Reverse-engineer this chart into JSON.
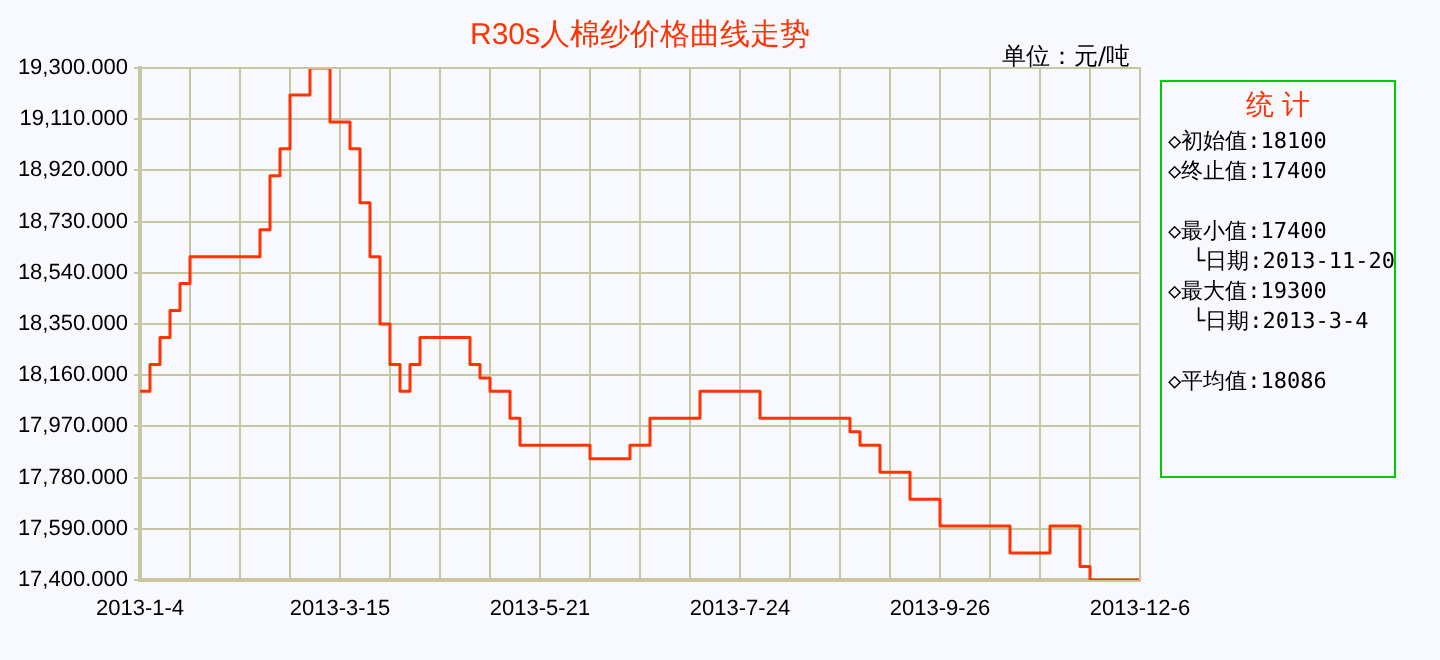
{
  "chart_data": {
    "type": "step",
    "title": "R30s人棉纱价格曲线走势",
    "subtitle": "单位：元/吨",
    "categories": [
      "2013-1-4",
      null,
      null,
      null,
      null,
      null,
      null,
      null,
      null,
      null,
      null,
      null,
      null,
      null,
      null,
      null,
      null,
      null,
      null,
      null,
      "2013-3-15",
      null,
      null,
      null,
      null,
      null,
      null,
      null,
      null,
      null,
      null,
      null,
      null,
      null,
      null,
      null,
      null,
      null,
      null,
      null,
      "2013-5-21",
      null,
      null,
      null,
      null,
      null,
      null,
      null,
      null,
      null,
      null,
      null,
      null,
      null,
      null,
      null,
      null,
      null,
      null,
      null,
      "2013-7-24",
      null,
      null,
      null,
      null,
      null,
      null,
      null,
      null,
      null,
      null,
      null,
      null,
      null,
      null,
      null,
      null,
      null,
      null,
      null,
      "2013-9-26",
      null,
      null,
      null,
      null,
      null,
      null,
      null,
      null,
      null,
      null,
      null,
      null,
      null,
      null,
      null,
      null,
      null,
      null,
      null,
      "2013-12-6"
    ],
    "series": [
      {
        "color": "#ff3300",
        "values": [
          18100,
          18200,
          18300,
          18400,
          18500,
          18600,
          18600,
          18600,
          18600,
          18600,
          18600,
          18600,
          18700,
          18900,
          19000,
          19200,
          19200,
          19300,
          19300,
          19100,
          19100,
          19000,
          18800,
          18600,
          18350,
          18200,
          18100,
          18200,
          18300,
          18300,
          18300,
          18300,
          18300,
          18200,
          18150,
          18100,
          18100,
          18000,
          17900,
          17900,
          17900,
          17900,
          17900,
          17900,
          17900,
          17850,
          17850,
          17850,
          17850,
          17900,
          17900,
          18000,
          18000,
          18000,
          18000,
          18000,
          18100,
          18100,
          18100,
          18100,
          18100,
          18100,
          18000,
          18000,
          18000,
          18000,
          18000,
          18000,
          18000,
          18000,
          18000,
          17950,
          17900,
          17900,
          17800,
          17800,
          17800,
          17700,
          17700,
          17700,
          17600,
          17600,
          17600,
          17600,
          17600,
          17600,
          17600,
          17500,
          17500,
          17500,
          17500,
          17600,
          17600,
          17600,
          17450,
          17400,
          17400,
          17400,
          17400,
          17400,
          17400
        ]
      }
    ],
    "ylim": [
      17400,
      19300
    ],
    "yticks": [
      {
        "value": 17400,
        "label": "17,400.000"
      },
      {
        "value": 17590,
        "label": "17,590.000"
      },
      {
        "value": 17780,
        "label": "17,780.000"
      },
      {
        "value": 17970,
        "label": "17,970.000"
      },
      {
        "value": 18160,
        "label": "18,160.000"
      },
      {
        "value": 18350,
        "label": "18,350.000"
      },
      {
        "value": 18540,
        "label": "18,540.000"
      },
      {
        "value": 18730,
        "label": "18,730.000"
      },
      {
        "value": 18920,
        "label": "18,920.000"
      },
      {
        "value": 19110,
        "label": "19,110.000"
      },
      {
        "value": 19300,
        "label": "19,300.000"
      }
    ],
    "grid": true,
    "marker": "none",
    "line_style": "solid",
    "legend": false,
    "annotations": [
      "统 计",
      "◇初始值:18100",
      "◇终止值:17400",
      "◇最小值:17400",
      "└日期:2013-11-20",
      "◇最大值:19300",
      "└日期:2013-3-4",
      "◇平均值:18086"
    ]
  }
}
